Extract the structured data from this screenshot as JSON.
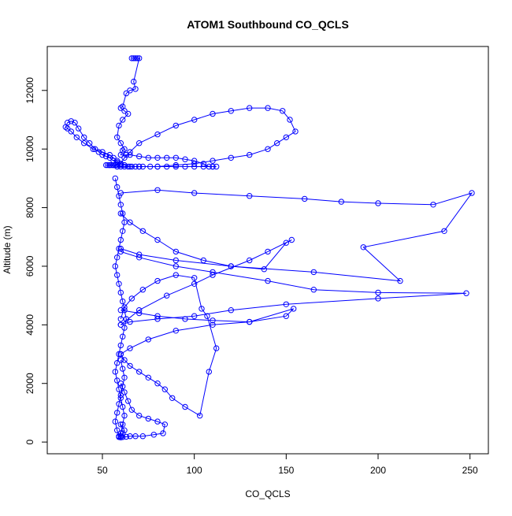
{
  "chart_data": {
    "type": "line",
    "title": "ATOM1 Southbound CO_QCLS",
    "xlabel": "CO_QCLS",
    "ylabel": "Altitude (m)",
    "xlim": [
      20,
      260
    ],
    "ylim": [
      -400,
      13500
    ],
    "xticks": [
      50,
      100,
      150,
      200,
      250
    ],
    "yticks": [
      0,
      2000,
      4000,
      6000,
      8000,
      10000,
      12000
    ],
    "grid": false,
    "legend": "none",
    "series_color": "#0000ff",
    "marker": "open-circle",
    "series": [
      {
        "x": [
          68,
          67,
          66,
          69,
          70,
          67,
          68,
          65,
          63,
          61,
          60,
          62,
          64,
          61,
          59,
          58,
          60,
          62,
          61,
          60,
          63,
          65,
          70,
          75,
          80,
          85,
          90,
          95,
          100,
          105,
          108,
          110,
          112,
          110,
          105,
          100,
          95,
          90,
          85,
          80,
          76,
          72,
          70,
          68,
          66,
          64,
          62,
          60,
          58,
          57,
          56,
          55,
          54,
          53,
          52,
          54,
          56,
          58,
          60
        ],
        "y": [
          13100,
          13100,
          13100,
          13100,
          13100,
          12300,
          12050,
          12000,
          11900,
          11450,
          11400,
          11300,
          11200,
          11000,
          10800,
          10400,
          10200,
          10000,
          9950,
          9800,
          9800,
          9800,
          9750,
          9700,
          9700,
          9700,
          9700,
          9650,
          9600,
          9500,
          9400,
          9400,
          9400,
          9400,
          9400,
          9400,
          9400,
          9400,
          9400,
          9400,
          9400,
          9400,
          9400,
          9400,
          9400,
          9400,
          9400,
          9400,
          9400,
          9450,
          9450,
          9450,
          9450,
          9450,
          9450,
          9450,
          9450,
          9450,
          9450
        ]
      },
      {
        "x": [
          60,
          58,
          56,
          54,
          50,
          45,
          40,
          36,
          33,
          31,
          30,
          31,
          33,
          35,
          37,
          40,
          43,
          46,
          48,
          50,
          52,
          54,
          56,
          58,
          60
        ],
        "y": [
          9500,
          9600,
          9700,
          9800,
          9900,
          10000,
          10200,
          10400,
          10600,
          10700,
          10750,
          10900,
          10950,
          10900,
          10700,
          10400,
          10200,
          10000,
          9900,
          9800,
          9750,
          9700,
          9600,
          9550,
          9500
        ]
      },
      {
        "x": [
          60,
          62,
          65,
          70,
          80,
          90,
          100,
          110,
          120,
          130,
          140,
          148,
          152,
          155,
          150,
          145,
          140,
          130,
          120,
          110,
          100,
          90,
          80,
          70,
          65,
          62,
          60
        ],
        "y": [
          9500,
          9700,
          9900,
          10200,
          10500,
          10800,
          11000,
          11200,
          11300,
          11400,
          11400,
          11300,
          11000,
          10600,
          10400,
          10200,
          10000,
          9800,
          9700,
          9600,
          9500,
          9450,
          9400,
          9400,
          9400,
          9450,
          9500
        ]
      },
      {
        "x": [
          60,
          80,
          100,
          130,
          160,
          180,
          200,
          230,
          251,
          236,
          192,
          212,
          165,
          120,
          90,
          70,
          60
        ],
        "y": [
          8500,
          8600,
          8500,
          8400,
          8300,
          8200,
          8150,
          8100,
          8500,
          7200,
          6650,
          5500,
          5800,
          6000,
          6200,
          6400,
          6600
        ]
      },
      {
        "x": [
          60,
          70,
          90,
          110,
          140,
          165,
          200,
          248,
          200,
          150,
          120,
          100,
          80,
          65,
          60
        ],
        "y": [
          6500,
          6300,
          6000,
          5800,
          5500,
          5200,
          5100,
          5080,
          4900,
          4700,
          4500,
          4300,
          4200,
          4100,
          4000
        ]
      },
      {
        "x": [
          60,
          65,
          72,
          80,
          90,
          105,
          120,
          138,
          150,
          153,
          140,
          130,
          110,
          100,
          85,
          70,
          60
        ],
        "y": [
          7800,
          7500,
          7200,
          6900,
          6500,
          6200,
          6000,
          5900,
          6800,
          6900,
          6500,
          6200,
          5700,
          5400,
          5000,
          4500,
          4000
        ]
      },
      {
        "x": [
          60,
          70,
          80,
          95,
          110,
          130,
          154,
          150,
          130,
          110,
          90,
          75,
          65,
          60
        ],
        "y": [
          4500,
          4400,
          4300,
          4200,
          4150,
          4100,
          4550,
          4300,
          4100,
          4000,
          3800,
          3500,
          3200,
          3000
        ]
      },
      {
        "x": [
          60,
          62,
          65,
          70,
          75,
          80,
          84,
          88,
          95,
          103,
          108,
          112,
          107,
          104,
          100,
          90,
          80,
          72,
          66,
          62,
          60
        ],
        "y": [
          3000,
          2800,
          2600,
          2400,
          2200,
          2000,
          1800,
          1500,
          1200,
          900,
          2400,
          3200,
          4300,
          4550,
          5600,
          5700,
          5500,
          5200,
          4900,
          4600,
          4200
        ]
      },
      {
        "x": [
          60,
          62,
          64,
          66,
          70,
          75,
          80,
          84,
          83,
          78,
          72,
          68,
          65,
          63,
          61,
          60,
          59,
          60,
          61,
          62,
          60
        ],
        "y": [
          2000,
          1700,
          1400,
          1100,
          900,
          800,
          700,
          600,
          300,
          250,
          200,
          200,
          200,
          180,
          170,
          160,
          170,
          200,
          300,
          400,
          600
        ]
      },
      {
        "x": [
          57,
          58,
          59,
          60,
          61,
          62,
          61,
          60,
          59,
          58,
          57,
          58,
          59,
          60,
          61,
          62,
          63,
          62,
          61,
          60,
          59,
          58,
          57,
          58,
          59,
          60,
          61,
          62,
          61,
          60,
          59,
          58,
          57,
          58,
          59,
          60,
          61,
          62,
          61,
          60
        ],
        "y": [
          9000,
          8700,
          8400,
          8100,
          7800,
          7500,
          7200,
          6900,
          6600,
          6300,
          6000,
          5700,
          5400,
          5100,
          4800,
          4500,
          4200,
          3900,
          3600,
          3300,
          3000,
          2700,
          2400,
          2100,
          1800,
          1500,
          1200,
          900,
          600,
          300,
          200,
          400,
          700,
          1000,
          1300,
          1600,
          1900,
          2200,
          2500,
          2800
        ]
      }
    ]
  }
}
